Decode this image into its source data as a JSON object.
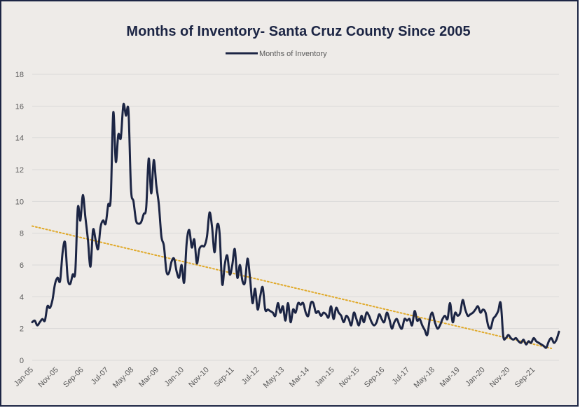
{
  "chart_data": {
    "type": "line",
    "title": "Months of Inventory- Santa Cruz County Since 2005",
    "xlabel": "",
    "ylabel": "",
    "ylim": [
      0,
      18
    ],
    "yticks": [
      0,
      2,
      4,
      6,
      8,
      10,
      12,
      14,
      16,
      18
    ],
    "xtick_labels": [
      "Jan-05",
      "Nov-05",
      "Sep-06",
      "Jul-07",
      "May-08",
      "Mar-09",
      "Jan-10",
      "Nov-10",
      "Sep-11",
      "Jul-12",
      "May-13",
      "Mar-14",
      "Jan-15",
      "Nov-15",
      "Sep-16",
      "Jul-17",
      "May-18",
      "Mar-19",
      "Jan-20",
      "Nov-20",
      "Sep-21"
    ],
    "grid": "horizontal",
    "legend_position": "top-center",
    "series": [
      {
        "name": "Months of Inventory",
        "color": "#1c2544",
        "values": [
          2.4,
          2.5,
          2.2,
          2.4,
          2.6,
          2.5,
          3.4,
          3.3,
          3.8,
          4.8,
          5.2,
          5.0,
          6.8,
          7.4,
          5.2,
          4.8,
          5.4,
          5.6,
          9.6,
          8.8,
          10.4,
          9.0,
          7.6,
          5.9,
          8.2,
          7.6,
          7.0,
          8.4,
          8.8,
          8.6,
          9.8,
          10.2,
          15.6,
          12.5,
          14.2,
          14.0,
          16.1,
          15.4,
          15.7,
          10.8,
          10.0,
          8.8,
          8.6,
          8.7,
          9.2,
          9.6,
          12.7,
          10.5,
          12.6,
          11.0,
          9.8,
          7.8,
          7.2,
          5.6,
          5.5,
          6.2,
          6.4,
          5.6,
          5.2,
          6.0,
          4.9,
          7.4,
          8.2,
          7.1,
          7.6,
          6.1,
          7.0,
          7.2,
          7.2,
          7.8,
          9.3,
          8.4,
          6.8,
          8.5,
          8.0,
          4.8,
          6.0,
          6.6,
          5.4,
          6.0,
          7.0,
          5.2,
          6.0,
          5.0,
          4.9,
          6.4,
          5.2,
          3.6,
          4.5,
          3.2,
          4.0,
          4.6,
          3.2,
          3.2,
          3.1,
          3.0,
          2.8,
          3.6,
          3.0,
          3.4,
          2.5,
          3.6,
          2.4,
          3.2,
          3.0,
          3.6,
          3.5,
          3.6,
          3.0,
          2.8,
          3.6,
          3.6,
          3.0,
          3.1,
          2.8,
          3.0,
          2.9,
          2.7,
          3.4,
          2.6,
          3.3,
          3.0,
          2.8,
          2.4,
          2.8,
          2.6,
          2.2,
          3.0,
          2.6,
          2.2,
          2.8,
          2.4,
          3.0,
          2.8,
          2.4,
          2.2,
          2.4,
          2.9,
          2.6,
          2.4,
          3.0,
          2.6,
          2.0,
          2.4,
          2.6,
          2.2,
          2.0,
          2.6,
          2.5,
          2.6,
          2.2,
          3.1,
          2.5,
          2.6,
          2.2,
          1.9,
          1.6,
          2.6,
          3.0,
          2.4,
          2.0,
          2.2,
          2.6,
          2.8,
          2.6,
          3.6,
          2.4,
          3.0,
          2.8,
          3.0,
          3.8,
          3.2,
          2.8,
          2.9,
          3.0,
          3.2,
          3.4,
          3.0,
          3.2,
          3.0,
          2.2,
          2.0,
          2.6,
          2.8,
          3.1,
          3.6,
          1.5,
          1.4,
          1.6,
          1.4,
          1.3,
          1.4,
          1.2,
          1.1,
          1.3,
          1.0,
          1.2,
          1.1,
          1.4,
          1.2,
          1.1,
          1.0,
          0.9,
          0.8,
          1.2,
          1.4,
          1.1,
          1.3,
          1.8
        ]
      },
      {
        "name": "",
        "style": "dotted-trendline",
        "color": "#e0a929",
        "x": [
          0,
          205
        ],
        "values": [
          8.45,
          0.75
        ]
      }
    ]
  }
}
